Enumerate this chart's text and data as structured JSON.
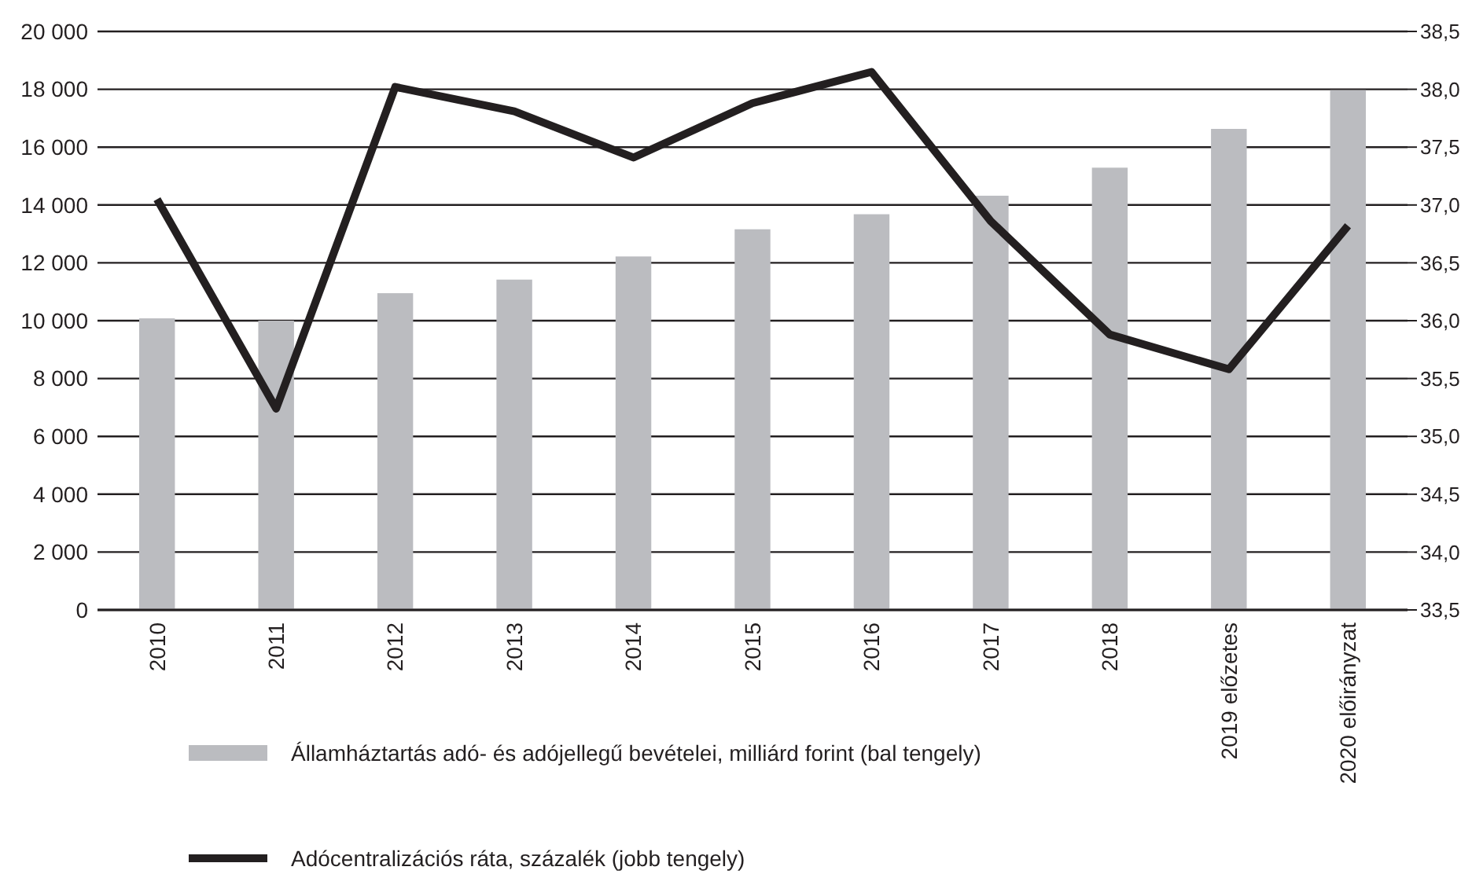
{
  "chart_data": {
    "type": "bar",
    "categories": [
      "2010",
      "2011",
      "2012",
      "2013",
      "2014",
      "2015",
      "2016",
      "2017",
      "2018",
      "2019 előzetes",
      "2020 előirányzat"
    ],
    "series": [
      {
        "name": "Államháztartás adó- és adójellegű bevételei, milliárd forint (bal tengely)",
        "color": "#bbbcc0",
        "values": [
          10080,
          10000,
          10950,
          11420,
          12220,
          13160,
          13680,
          14320,
          15290,
          16630,
          17970
        ]
      },
      {
        "name": "Adócentralizációs ráta, százalék (jobb tengely)",
        "type": "line",
        "axis": "y2",
        "color": "#231f20",
        "values": [
          37.05,
          35.24,
          38.02,
          37.81,
          37.41,
          37.88,
          38.15,
          36.86,
          35.88,
          35.58,
          36.82
        ]
      }
    ],
    "ylim": [
      0,
      20000
    ],
    "yticks": [
      {
        "value": 0,
        "label": "0"
      },
      {
        "value": 2000,
        "label": "2 000"
      },
      {
        "value": 4000,
        "label": "4 000"
      },
      {
        "value": 6000,
        "label": "6 000"
      },
      {
        "value": 8000,
        "label": "8 000"
      },
      {
        "value": 10000,
        "label": "10 000"
      },
      {
        "value": 12000,
        "label": "12 000"
      },
      {
        "value": 14000,
        "label": "14 000"
      },
      {
        "value": 16000,
        "label": "16 000"
      },
      {
        "value": 18000,
        "label": "18 000"
      },
      {
        "value": 20000,
        "label": "20 000"
      }
    ],
    "y2lim": [
      33.5,
      38.5
    ],
    "y2ticks": [
      {
        "value": 33.5,
        "label": "33,5"
      },
      {
        "value": 34,
        "label": "34,0"
      },
      {
        "value": 34.5,
        "label": "34,5"
      },
      {
        "value": 35,
        "label": "35,0"
      },
      {
        "value": 35.5,
        "label": "35,5"
      },
      {
        "value": 36,
        "label": "36,0"
      },
      {
        "value": 36.5,
        "label": "36,5"
      },
      {
        "value": 37,
        "label": "37,0"
      },
      {
        "value": 37.5,
        "label": "37,5"
      },
      {
        "value": 38,
        "label": "38,0"
      },
      {
        "value": 38.5,
        "label": "38,5"
      }
    ],
    "grid": "y",
    "legend": "bottom",
    "line_style": "solid",
    "marker": "none"
  }
}
